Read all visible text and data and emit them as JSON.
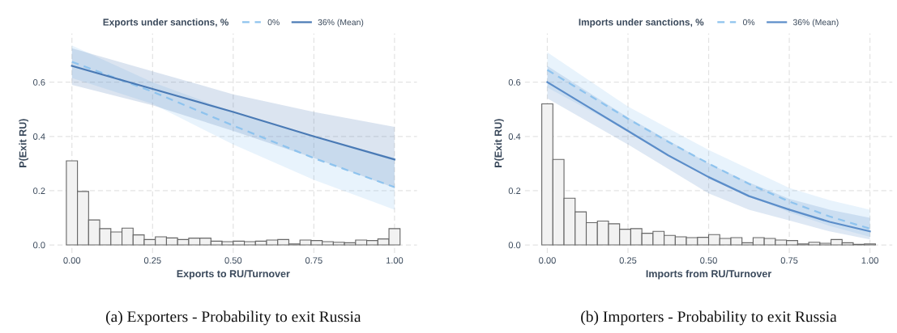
{
  "chart_data": [
    {
      "type": "line",
      "xlabel": "Exports to RU/Turnover",
      "ylabel": "P(Exit RU)",
      "legend_title": "Exports under sanctions, %",
      "legend": "top",
      "grid": true,
      "xlim": [
        -0.07,
        1.07
      ],
      "ylim": [
        -0.03,
        0.78
      ],
      "xticks": [
        {
          "value": 0,
          "label": "0.00"
        },
        {
          "value": 0.25,
          "label": "0.25"
        },
        {
          "value": 0.5,
          "label": "0.50"
        },
        {
          "value": 0.75,
          "label": "0.75"
        },
        {
          "value": 1,
          "label": "1.00"
        }
      ],
      "yticks": [
        {
          "value": 0,
          "label": "0.0"
        },
        {
          "value": 0.2,
          "label": "0.2"
        },
        {
          "value": 0.4,
          "label": "0.4"
        },
        {
          "value": 0.6,
          "label": "0.6"
        }
      ],
      "annotations": [
        "(a) Exporters - Probability to exit Russia"
      ],
      "series": [
        {
          "type": "histogram",
          "color": "#f2f2f2",
          "bins": [
            -0.0172,
            0.0172,
            0.0517,
            0.0862,
            0.1207,
            0.1552,
            0.1897,
            0.2241,
            0.2586,
            0.2931,
            0.3276,
            0.3621,
            0.3966,
            0.431,
            0.4655,
            0.5,
            0.5345,
            0.569,
            0.6034,
            0.6379,
            0.6724,
            0.7069,
            0.7414,
            0.7759,
            0.8103,
            0.8448,
            0.8793,
            0.9138,
            0.9483,
            0.9828,
            1.0172
          ],
          "values": [
            0.31,
            0.197,
            0.092,
            0.06,
            0.048,
            0.062,
            0.037,
            0.02,
            0.03,
            0.026,
            0.02,
            0.025,
            0.025,
            0.014,
            0.012,
            0.014,
            0.012,
            0.014,
            0.018,
            0.02,
            0.004,
            0.018,
            0.016,
            0.012,
            0.01,
            0.008,
            0.018,
            0.016,
            0.022,
            0.06
          ]
        },
        {
          "name": "0%",
          "line_style": "dashed",
          "color": "#8ec3ee",
          "x": [
            0,
            0.25,
            0.5,
            0.75,
            1
          ],
          "values": [
            0.675,
            0.565,
            0.44,
            0.32,
            0.213
          ],
          "lower": [
            0.615,
            0.52,
            0.37,
            0.24,
            0.13
          ],
          "upper": [
            0.735,
            0.6,
            0.49,
            0.4,
            0.32
          ]
        },
        {
          "name": "36% (Mean)",
          "line_style": "solid",
          "color": "#4a7ab5",
          "x": [
            0,
            0.25,
            0.5,
            0.75,
            1
          ],
          "values": [
            0.66,
            0.575,
            0.49,
            0.4,
            0.315
          ],
          "lower": [
            0.59,
            0.515,
            0.42,
            0.32,
            0.21
          ],
          "upper": [
            0.725,
            0.64,
            0.555,
            0.49,
            0.435
          ]
        }
      ]
    },
    {
      "type": "line",
      "xlabel": "Imports from RU/Turnover",
      "ylabel": "P(Exit RU)",
      "legend_title": "Imports under sanctions, %",
      "legend": "top",
      "grid": true,
      "xlim": [
        -0.07,
        1.07
      ],
      "ylim": [
        -0.03,
        0.78
      ],
      "xticks": [
        {
          "value": 0,
          "label": "0.00"
        },
        {
          "value": 0.25,
          "label": "0.25"
        },
        {
          "value": 0.5,
          "label": "0.50"
        },
        {
          "value": 0.75,
          "label": "0.75"
        },
        {
          "value": 1,
          "label": "1.00"
        }
      ],
      "yticks": [
        {
          "value": 0,
          "label": "0.0"
        },
        {
          "value": 0.2,
          "label": "0.2"
        },
        {
          "value": 0.4,
          "label": "0.4"
        },
        {
          "value": 0.6,
          "label": "0.6"
        }
      ],
      "annotations": [
        "(b) Importers - Probability to exit Russia"
      ],
      "series": [
        {
          "type": "histogram",
          "color": "#f2f2f2",
          "bins": [
            -0.0172,
            0.0172,
            0.0517,
            0.0862,
            0.1207,
            0.1552,
            0.1897,
            0.2241,
            0.2586,
            0.2931,
            0.3276,
            0.3621,
            0.3966,
            0.431,
            0.4655,
            0.5,
            0.5345,
            0.569,
            0.6034,
            0.6379,
            0.6724,
            0.7069,
            0.7414,
            0.7759,
            0.8103,
            0.8448,
            0.8793,
            0.9138,
            0.9483,
            0.9828,
            1.0172
          ],
          "values": [
            0.52,
            0.315,
            0.172,
            0.122,
            0.082,
            0.088,
            0.078,
            0.058,
            0.06,
            0.043,
            0.05,
            0.035,
            0.03,
            0.027,
            0.028,
            0.038,
            0.024,
            0.027,
            0.008,
            0.027,
            0.024,
            0.018,
            0.016,
            0.004,
            0.01,
            0.006,
            0.02,
            0.008,
            0.002,
            0.004
          ]
        },
        {
          "name": "0%",
          "line_style": "dashed",
          "color": "#8ec3ee",
          "x": [
            0,
            0.125,
            0.25,
            0.375,
            0.5,
            0.625,
            0.75,
            0.875,
            1
          ],
          "values": [
            0.645,
            0.555,
            0.465,
            0.38,
            0.3,
            0.225,
            0.16,
            0.105,
            0.06
          ],
          "lower": [
            0.58,
            0.5,
            0.42,
            0.335,
            0.25,
            0.18,
            0.12,
            0.07,
            0.03
          ],
          "upper": [
            0.71,
            0.61,
            0.51,
            0.43,
            0.35,
            0.28,
            0.21,
            0.165,
            0.13
          ]
        },
        {
          "name": "36% (Mean)",
          "line_style": "solid",
          "color": "#5b8dc9",
          "x": [
            0,
            0.125,
            0.25,
            0.375,
            0.5,
            0.625,
            0.75,
            0.875,
            1
          ],
          "values": [
            0.6,
            0.51,
            0.42,
            0.33,
            0.25,
            0.18,
            0.13,
            0.085,
            0.05
          ],
          "lower": [
            0.54,
            0.455,
            0.37,
            0.28,
            0.19,
            0.13,
            0.09,
            0.05,
            0.02
          ],
          "upper": [
            0.66,
            0.565,
            0.47,
            0.385,
            0.3,
            0.23,
            0.17,
            0.13,
            0.1
          ]
        }
      ]
    }
  ]
}
